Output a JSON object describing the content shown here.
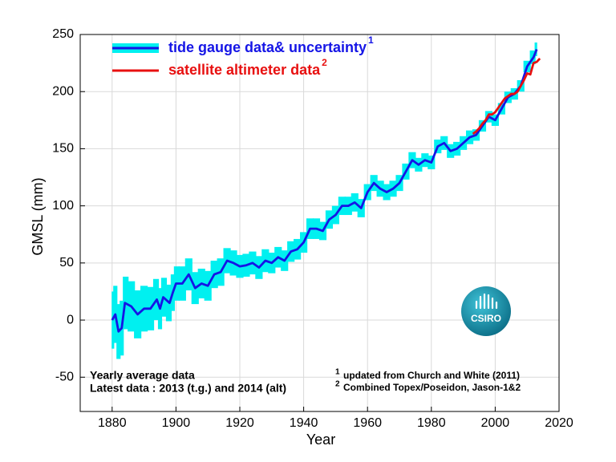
{
  "chart_data": {
    "type": "line",
    "x_label": "Year",
    "y_label": "GMSL (mm)",
    "xlim": [
      1870,
      2020
    ],
    "ylim": [
      -80,
      250
    ],
    "xticks": [
      1880,
      1900,
      1920,
      1940,
      1960,
      1980,
      2000,
      2020
    ],
    "yticks": [
      -50,
      0,
      50,
      100,
      150,
      200,
      250
    ],
    "grid": true,
    "legend": "upper left",
    "series": [
      {
        "name": "tide gauge data& uncertainty",
        "note_ref": "1",
        "color": "#1515e6",
        "band_color": "#00f0f0",
        "x": [
          1880,
          1881,
          1882,
          1883,
          1884,
          1886,
          1888,
          1890,
          1892,
          1894,
          1895,
          1896,
          1898,
          1899,
          1900,
          1902,
          1904,
          1906,
          1908,
          1910,
          1912,
          1914,
          1916,
          1918,
          1920,
          1922,
          1924,
          1926,
          1928,
          1930,
          1932,
          1934,
          1936,
          1938,
          1940,
          1942,
          1944,
          1946,
          1948,
          1950,
          1952,
          1954,
          1956,
          1958,
          1960,
          1962,
          1964,
          1966,
          1968,
          1970,
          1972,
          1974,
          1976,
          1978,
          1980,
          1982,
          1984,
          1986,
          1988,
          1990,
          1992,
          1994,
          1996,
          1998,
          2000,
          2002,
          2004,
          2006,
          2008,
          2010,
          2012,
          2013
        ],
        "values": [
          0,
          5,
          -10,
          -7,
          15,
          12,
          5,
          10,
          10,
          18,
          10,
          20,
          15,
          24,
          32,
          32,
          40,
          28,
          32,
          30,
          40,
          42,
          52,
          50,
          47,
          48,
          50,
          46,
          52,
          50,
          55,
          52,
          60,
          62,
          68,
          80,
          80,
          78,
          88,
          92,
          100,
          100,
          103,
          98,
          112,
          120,
          115,
          112,
          115,
          120,
          130,
          140,
          136,
          140,
          138,
          152,
          155,
          148,
          150,
          155,
          160,
          162,
          170,
          178,
          175,
          185,
          195,
          198,
          205,
          222,
          230,
          237
        ],
        "uncertainty": [
          25,
          25,
          24,
          24,
          23,
          22,
          21,
          20,
          19,
          18,
          18,
          17,
          16,
          16,
          15,
          15,
          14,
          14,
          13,
          13,
          12,
          12,
          11,
          11,
          10,
          10,
          10,
          10,
          10,
          9,
          9,
          9,
          9,
          9,
          9,
          9,
          9,
          8,
          8,
          8,
          8,
          8,
          8,
          8,
          7,
          7,
          7,
          7,
          7,
          7,
          7,
          7,
          6,
          6,
          6,
          6,
          6,
          6,
          6,
          6,
          6,
          5,
          5,
          5,
          5,
          5,
          5,
          5,
          5,
          5,
          6,
          6
        ]
      },
      {
        "name": "satellite altimeter data",
        "note_ref": "2",
        "color": "#e81010",
        "x": [
          1993,
          1994,
          1995,
          1996,
          1997,
          1998,
          1999,
          2000,
          2001,
          2002,
          2003,
          2004,
          2005,
          2006,
          2007,
          2008,
          2009,
          2010,
          2011,
          2012,
          2013,
          2014
        ],
        "values": [
          163,
          165,
          168,
          172,
          175,
          180,
          180,
          182,
          186,
          190,
          194,
          196,
          198,
          198,
          200,
          205,
          210,
          216,
          215,
          225,
          226,
          229
        ]
      }
    ],
    "annotations": [
      "Yearly average data",
      "Latest data : 2013 (t.g.) and 2014 (alt)"
    ],
    "footnotes": [
      {
        "mark": "1",
        "text": "updated from Church and White (2011)"
      },
      {
        "mark": "2",
        "text": "Combined Topex/Poseidon, Jason-1&2"
      }
    ],
    "logo": "CSIRO"
  }
}
